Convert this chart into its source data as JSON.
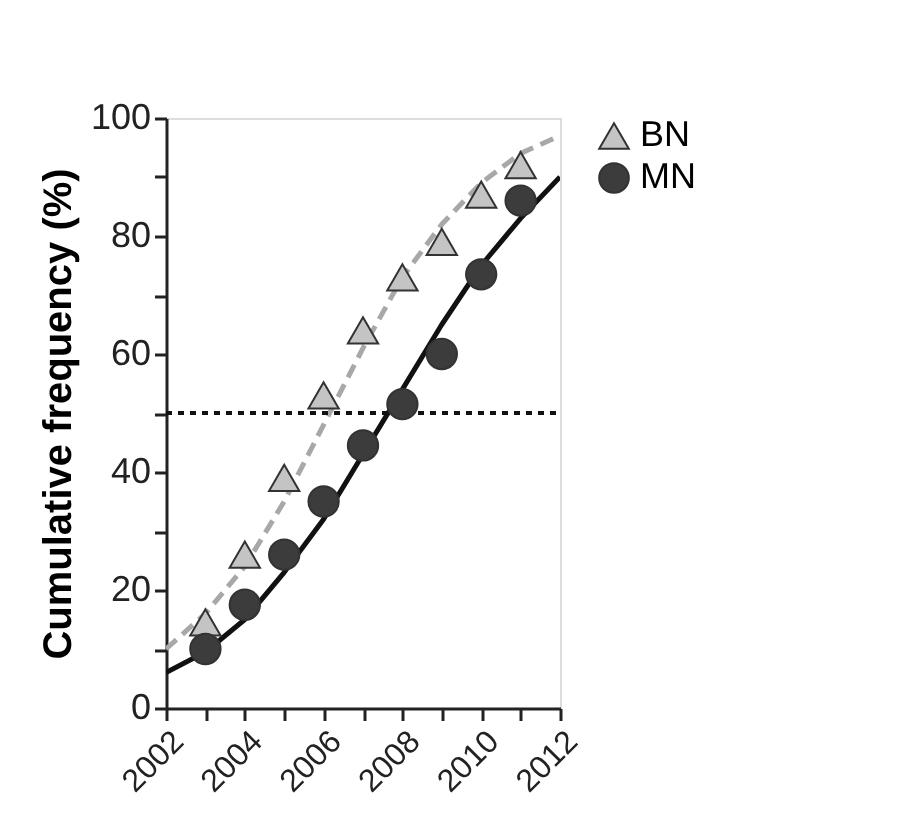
{
  "chart_data": {
    "type": "scatter",
    "ylabel": "Cumulative frequency (%)",
    "xlim": [
      2002,
      2012
    ],
    "ylim": [
      0,
      100
    ],
    "xticks": [
      2002,
      {
        "value": 2003,
        "label": null
      },
      2004,
      {
        "value": 2005,
        "label": null
      },
      2006,
      {
        "value": 2007,
        "label": null
      },
      2008,
      {
        "value": 2009,
        "label": null
      },
      2010,
      {
        "value": 2011,
        "label": null
      },
      2012
    ],
    "yticks": [
      0,
      {
        "value": 10,
        "label": null
      },
      20,
      {
        "value": 30,
        "label": null
      },
      40,
      {
        "value": 50,
        "label": null
      },
      60,
      {
        "value": 70,
        "label": null
      },
      80,
      {
        "value": 90,
        "label": null
      },
      100
    ],
    "grid": false,
    "legend": "top right",
    "series": [
      {
        "name": "BN",
        "type": "scatter",
        "marker": "triangle",
        "color": "#c4c4c4",
        "x": [
          2003,
          2004,
          2005,
          2006,
          2007,
          2008,
          2009,
          2010,
          2011
        ],
        "values": [
          14.5,
          26,
          39,
          53,
          64,
          73,
          79,
          87,
          92
        ]
      },
      {
        "name": "MN",
        "type": "scatter",
        "marker": "circle",
        "color": "#3c3c3c",
        "x": [
          2003,
          2004,
          2005,
          2006,
          2007,
          2008,
          2009,
          2010,
          2011
        ],
        "values": [
          10,
          17.5,
          26,
          35,
          44.5,
          51.5,
          60,
          73.5,
          86
        ]
      },
      {
        "type": "line",
        "line_style": "dashed",
        "color": "#a8a8a8",
        "x": [
          2002,
          2003,
          2004,
          2005,
          2006,
          2007,
          2008,
          2009,
          2010,
          2011,
          2012
        ],
        "values": [
          10,
          16,
          24,
          35,
          48,
          61,
          73,
          82,
          89,
          94,
          97
        ]
      },
      {
        "type": "line",
        "line_style": "solid",
        "color": "#111111",
        "x": [
          2002,
          2003,
          2004,
          2005,
          2006,
          2007,
          2008,
          2009,
          2010,
          2011,
          2012
        ],
        "values": [
          6,
          9.5,
          15,
          23,
          32,
          43,
          54,
          65,
          75,
          83,
          90
        ]
      }
    ],
    "ref_lines": [
      {
        "axis": "y",
        "value": 50,
        "label": null,
        "color": "#111111",
        "line_style": "dotted"
      }
    ]
  }
}
